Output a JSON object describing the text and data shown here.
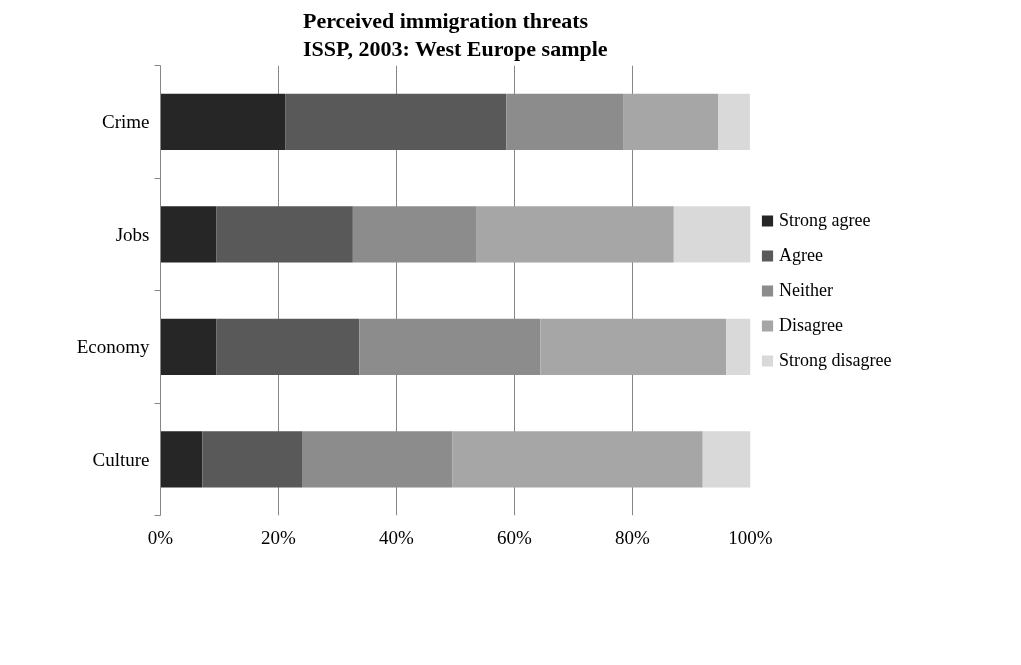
{
  "chart_data": {
    "type": "bar",
    "orientation": "horizontal",
    "stacked": true,
    "title": "Perceived immigration  threats\nISSP, 2003: West Europe sample",
    "categories": [
      "Crime",
      "Jobs",
      "Economy",
      "Culture"
    ],
    "series": [
      {
        "name": "Strong agree",
        "color": "#262626",
        "values": [
          21.2,
          9.5,
          9.5,
          7.1
        ]
      },
      {
        "name": "Agree",
        "color": "#595959",
        "values": [
          37.4,
          23.1,
          24.2,
          17.0
        ]
      },
      {
        "name": "Neither",
        "color": "#8c8c8c",
        "values": [
          19.8,
          21.0,
          30.7,
          25.4
        ]
      },
      {
        "name": "Disagree",
        "color": "#a6a6a6",
        "values": [
          16.1,
          33.4,
          31.5,
          42.4
        ]
      },
      {
        "name": "Strong disagree",
        "color": "#d9d9d9",
        "values": [
          5.4,
          13.0,
          4.1,
          8.1
        ]
      }
    ],
    "xlim": [
      0,
      100
    ],
    "xticks": [
      {
        "value": 0,
        "label": "0%"
      },
      {
        "value": 20,
        "label": "20%"
      },
      {
        "value": 40,
        "label": "40%"
      },
      {
        "value": 60,
        "label": "60%"
      },
      {
        "value": 80,
        "label": "80%"
      },
      {
        "value": 100,
        "label": "100%"
      }
    ],
    "grid": "x",
    "legend": "right"
  }
}
